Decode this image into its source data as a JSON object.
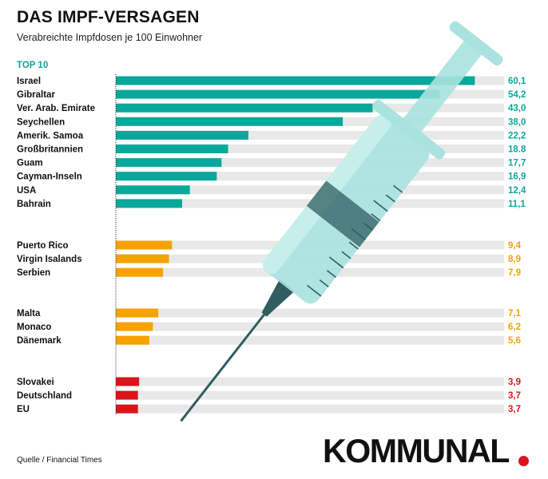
{
  "header": {
    "title": "DAS IMPF-VERSAGEN",
    "subtitle": "Verabreichte Impfdosen je 100 Einwohner",
    "group_label": "TOP 10"
  },
  "footer": {
    "source": "Quelle / Financial Times",
    "logo_text": "KOMMUNAL"
  },
  "colors": {
    "top10": "#0aa89a",
    "mid": "#f6a200",
    "low": "#d9151b",
    "track": "#e8e8e8",
    "syringe_body": "#a9e2df",
    "syringe_dark": "#2f5d60"
  },
  "chart_data": {
    "type": "bar",
    "orientation": "horizontal",
    "title": "DAS IMPF-VERSAGEN",
    "subtitle": "Verabreichte Impfdosen je 100 Einwohner",
    "xlim": [
      0,
      65
    ],
    "groups": [
      {
        "label": "TOP 10",
        "color": "#0aa89a",
        "categories": [
          "Israel",
          "Gibraltar",
          "Ver. Arab. Emirate",
          "Seychellen",
          "Amerik. Samoa",
          "Großbritannien",
          "Guam",
          "Cayman-Inseln",
          "USA",
          "Bahrain"
        ],
        "values": [
          60.1,
          54.2,
          43.0,
          38.0,
          22.2,
          18.8,
          17.7,
          16.9,
          12.4,
          11.1
        ],
        "value_labels": [
          "60,1",
          "54,2",
          "43,0",
          "38,0",
          "22,2",
          "18.8",
          "17,7",
          "16,9",
          "12,4",
          "11,1"
        ]
      },
      {
        "label": "",
        "color": "#f6a200",
        "categories": [
          "Puerto Rico",
          "Virgin Isalands",
          "Serbien"
        ],
        "values": [
          9.4,
          8.9,
          7.9
        ],
        "value_labels": [
          "9,4",
          "8,9",
          "7,9"
        ]
      },
      {
        "label": "",
        "color": "#f6a200",
        "categories": [
          "Malta",
          "Monaco",
          "Dänemark"
        ],
        "values": [
          7.1,
          6.2,
          5.6
        ],
        "value_labels": [
          "7,1",
          "6,2",
          "5,6"
        ]
      },
      {
        "label": "",
        "color": "#d9151b",
        "categories": [
          "Slovakei",
          "Deutschland",
          "EU"
        ],
        "values": [
          3.9,
          3.7,
          3.7
        ],
        "value_labels": [
          "3,9",
          "3,7",
          "3,7"
        ]
      }
    ]
  }
}
